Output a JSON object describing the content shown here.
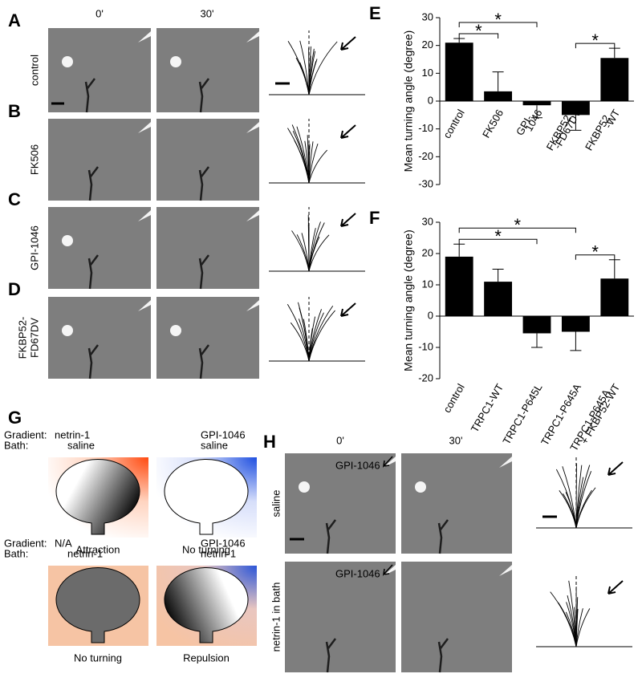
{
  "micrographs": {
    "letters": [
      "A",
      "B",
      "C",
      "D"
    ],
    "time_labels": [
      "0'",
      "30'"
    ],
    "rows": [
      [
        "control"
      ],
      [
        "FK506"
      ],
      [
        "GPI-1046"
      ],
      [
        "FKBP52-",
        "FD67DV"
      ]
    ]
  },
  "chart_data": [
    {
      "type": "bar",
      "letter": "E",
      "ylabel": "Mean turning angle (degree)",
      "categories": [
        [
          "control"
        ],
        [
          "FK506"
        ],
        [
          "GPI-",
          "1046"
        ],
        [
          "FKBP52",
          "-FD67DV"
        ],
        [
          "FKBP52",
          "-WT"
        ]
      ],
      "values": [
        21,
        3.5,
        -1.5,
        -5,
        15.5
      ],
      "errors": [
        1.5,
        7,
        4.5,
        5.5,
        3.5
      ],
      "color": "#000000",
      "ylim": [
        -30,
        30
      ],
      "yticks": [
        -30,
        -20,
        -10,
        0,
        10,
        20,
        30
      ],
      "significance": [
        {
          "pair": [
            0,
            1
          ],
          "label": "*"
        },
        {
          "pair": [
            0,
            2
          ],
          "label": "*"
        },
        {
          "pair": [
            3,
            4
          ],
          "label": "*"
        }
      ]
    },
    {
      "type": "bar",
      "letter": "F",
      "ylabel": "Mean turning angle (degree)",
      "categories": [
        [
          "control"
        ],
        [
          "TRPC1-WT"
        ],
        [
          "TRPC1-P645L"
        ],
        [
          "TRPC1-P645A"
        ],
        [
          "TRPC1-P645A",
          "+ FKBP52-WT"
        ]
      ],
      "values": [
        19,
        11,
        -5.5,
        -5,
        12
      ],
      "errors": [
        4,
        4,
        4.5,
        6,
        6
      ],
      "color": "#000000",
      "ylim": [
        -20,
        30
      ],
      "yticks": [
        -20,
        -10,
        0,
        10,
        20,
        30
      ],
      "significance": [
        {
          "pair": [
            0,
            2
          ],
          "label": "*"
        },
        {
          "pair": [
            0,
            3
          ],
          "label": "*"
        },
        {
          "pair": [
            3,
            4
          ],
          "label": "*"
        }
      ]
    }
  ],
  "schematic": {
    "letter": "G",
    "field_labels": [
      "Gradient:",
      "Bath:"
    ],
    "cells": [
      {
        "gradient": "netrin-1",
        "bath": "saline",
        "outcome": "Attraction"
      },
      {
        "gradient": "GPI-1046",
        "bath": "saline",
        "outcome": "No turning"
      },
      {
        "gradient": "N/A",
        "bath": "netrin-1",
        "outcome": "No turning"
      },
      {
        "gradient": "GPI-1046",
        "bath": "netrin-1",
        "outcome": "Repulsion"
      }
    ]
  },
  "bath_experiment": {
    "letter": "H",
    "time_labels": [
      "0'",
      "30'"
    ],
    "rows": [
      "saline",
      "netrin-1 in bath"
    ],
    "pipette_label": "GPI-1046"
  }
}
